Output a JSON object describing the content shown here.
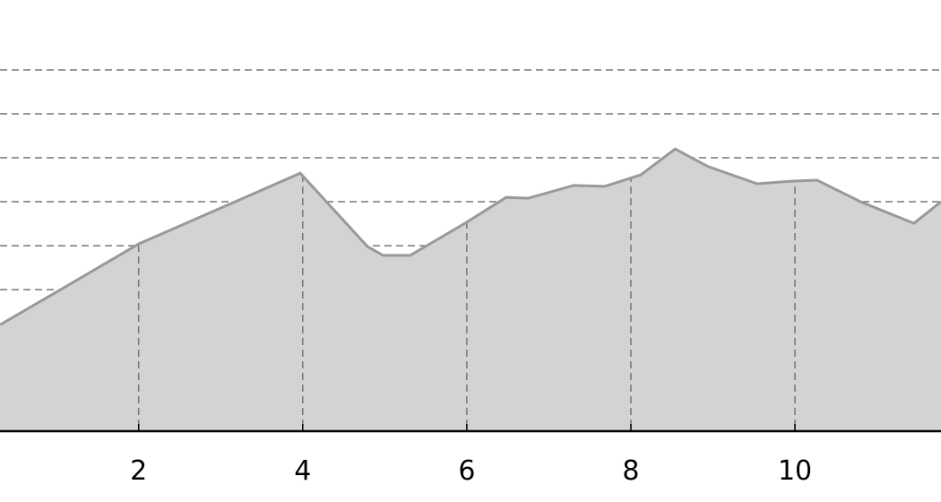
{
  "chart_data": {
    "type": "area",
    "title": "",
    "xlabel": "",
    "ylabel": "",
    "x_ticks": [
      2,
      4,
      6,
      8,
      10
    ],
    "y_gridlines": [
      0,
      1,
      2,
      3,
      4,
      5,
      6,
      7,
      8
    ],
    "xlim": [
      0.31,
      11.78
    ],
    "ylim": [
      -0.22,
      9.59
    ],
    "grid": true,
    "fill_color": "#d3d3d3",
    "line_color": "#999999",
    "grid_color": "#777777",
    "x": [
      0.31,
      1.05,
      2.0,
      3.2,
      3.97,
      4.79,
      4.98,
      5.31,
      5.96,
      6.48,
      6.75,
      7.3,
      7.68,
      8.12,
      8.54,
      8.94,
      9.54,
      9.98,
      10.27,
      10.8,
      11.45,
      11.78
    ],
    "y": [
      2.2,
      3.0,
      4.04,
      5.02,
      5.65,
      3.98,
      3.78,
      3.78,
      4.49,
      5.1,
      5.08,
      5.37,
      5.35,
      5.61,
      6.2,
      5.8,
      5.41,
      5.47,
      5.49,
      5.0,
      4.51,
      5.0
    ]
  }
}
